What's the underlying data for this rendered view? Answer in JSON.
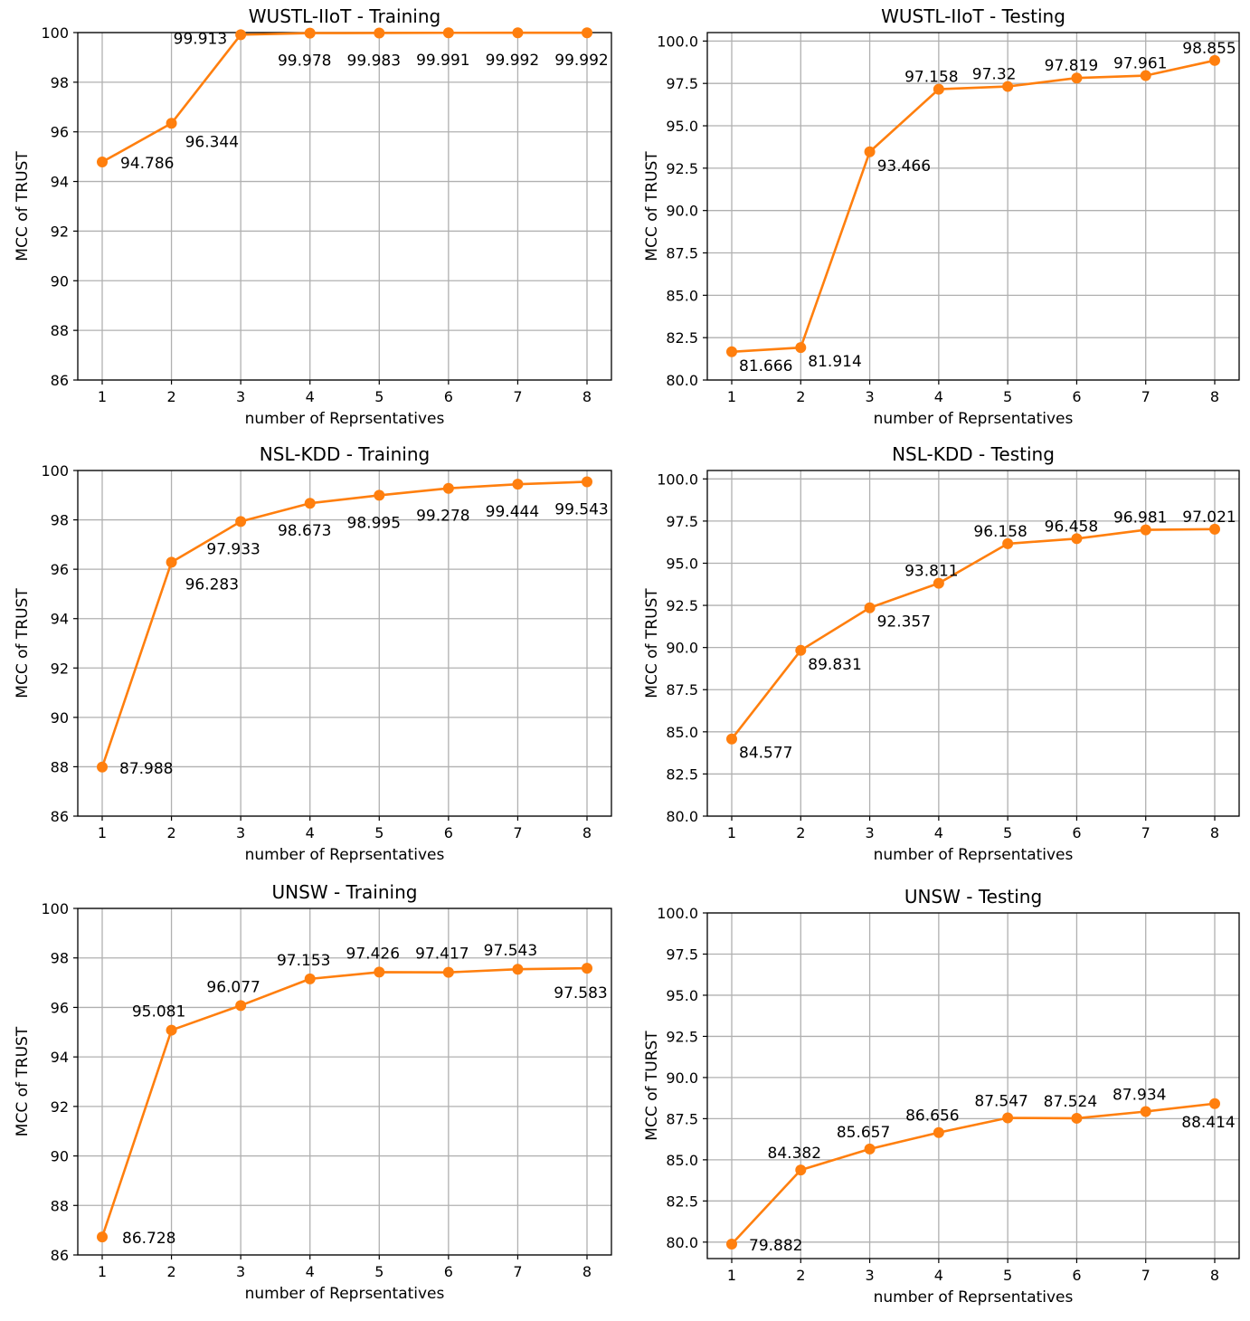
{
  "colors": {
    "series": "#ff7f0e",
    "grid": "#b0b0b0",
    "axis": "#000000"
  },
  "chart_data": [
    {
      "type": "line",
      "title": "WUSTL-IIoT - Training",
      "xlabel": "number of Reprsentatives",
      "ylabel": "MCC of TRUST",
      "x": [
        1,
        2,
        3,
        4,
        5,
        6,
        7,
        8
      ],
      "values": [
        94.786,
        96.344,
        99.913,
        99.978,
        99.983,
        99.991,
        99.992,
        99.992
      ],
      "labels": [
        "94.786",
        "96.344",
        "99.913",
        "99.978",
        "99.983",
        "99.991",
        "99.992",
        "99.992"
      ],
      "ylim": [
        86,
        100
      ],
      "xticks": [
        "1",
        "2",
        "3",
        "4",
        "5",
        "6",
        "7",
        "8"
      ],
      "yticks": [
        "86",
        "88",
        "90",
        "92",
        "94",
        "96",
        "98",
        "100"
      ],
      "grid": true
    },
    {
      "type": "line",
      "title": "WUSTL-IIoT - Testing",
      "xlabel": "number of Reprsentatives",
      "ylabel": "MCC of TRUST",
      "x": [
        1,
        2,
        3,
        4,
        5,
        6,
        7,
        8
      ],
      "values": [
        81.666,
        81.914,
        93.466,
        97.158,
        97.32,
        97.819,
        97.961,
        98.855
      ],
      "labels": [
        "81.666",
        "81.914",
        "93.466",
        "97.158",
        "97.32",
        "97.819",
        "97.961",
        "98.855"
      ],
      "ylim": [
        80,
        100.5
      ],
      "xticks": [
        "1",
        "2",
        "3",
        "4",
        "5",
        "6",
        "7",
        "8"
      ],
      "yticks": [
        "80.0",
        "82.5",
        "85.0",
        "87.5",
        "90.0",
        "92.5",
        "95.0",
        "97.5",
        "100.0"
      ],
      "grid": true
    },
    {
      "type": "line",
      "title": "NSL-KDD - Training",
      "xlabel": "number of Reprsentatives",
      "ylabel": "MCC of TRUST",
      "x": [
        1,
        2,
        3,
        4,
        5,
        6,
        7,
        8
      ],
      "values": [
        87.988,
        96.283,
        97.933,
        98.673,
        98.995,
        99.278,
        99.444,
        99.543
      ],
      "labels": [
        "87.988",
        "96.283",
        "97.933",
        "98.673",
        "98.995",
        "99.278",
        "99.444",
        "99.543"
      ],
      "ylim": [
        86,
        100
      ],
      "xticks": [
        "1",
        "2",
        "3",
        "4",
        "5",
        "6",
        "7",
        "8"
      ],
      "yticks": [
        "86",
        "88",
        "90",
        "92",
        "94",
        "96",
        "98",
        "100"
      ],
      "grid": true
    },
    {
      "type": "line",
      "title": "NSL-KDD - Testing",
      "xlabel": "number of Reprsentatives",
      "ylabel": "MCC of TRUST",
      "x": [
        1,
        2,
        3,
        4,
        5,
        6,
        7,
        8
      ],
      "values": [
        84.577,
        89.831,
        92.357,
        93.811,
        96.158,
        96.458,
        96.981,
        97.021
      ],
      "labels": [
        "84.577",
        "89.831",
        "92.357",
        "93.811",
        "96.158",
        "96.458",
        "96.981",
        "97.021"
      ],
      "ylim": [
        80,
        100.5
      ],
      "xticks": [
        "1",
        "2",
        "3",
        "4",
        "5",
        "6",
        "7",
        "8"
      ],
      "yticks": [
        "80.0",
        "82.5",
        "85.0",
        "87.5",
        "90.0",
        "92.5",
        "95.0",
        "97.5",
        "100.0"
      ],
      "grid": true
    },
    {
      "type": "line",
      "title": "UNSW - Training",
      "xlabel": "number of Reprsentatives",
      "ylabel": "MCC of TRUST",
      "x": [
        1,
        2,
        3,
        4,
        5,
        6,
        7,
        8
      ],
      "values": [
        86.728,
        95.081,
        96.077,
        97.153,
        97.426,
        97.417,
        97.543,
        97.583
      ],
      "labels": [
        "86.728",
        "95.081",
        "96.077",
        "97.153",
        "97.426",
        "97.417",
        "97.543",
        "97.583"
      ],
      "ylim": [
        86,
        100
      ],
      "xticks": [
        "1",
        "2",
        "3",
        "4",
        "5",
        "6",
        "7",
        "8"
      ],
      "yticks": [
        "86",
        "88",
        "90",
        "92",
        "94",
        "96",
        "98",
        "100"
      ],
      "grid": true
    },
    {
      "type": "line",
      "title": "UNSW - Testing",
      "xlabel": "number of Reprsentatives",
      "ylabel": "MCC of TURST",
      "x": [
        1,
        2,
        3,
        4,
        5,
        6,
        7,
        8
      ],
      "values": [
        79.882,
        84.382,
        85.657,
        86.656,
        87.547,
        87.524,
        87.934,
        88.414
      ],
      "labels": [
        "79.882",
        "84.382",
        "85.657",
        "86.656",
        "87.547",
        "87.524",
        "87.934",
        "88.414"
      ],
      "ylim": [
        79,
        100
      ],
      "xticks": [
        "1",
        "2",
        "3",
        "4",
        "5",
        "6",
        "7",
        "8"
      ],
      "yticks": [
        "80.0",
        "82.5",
        "85.0",
        "87.5",
        "90.0",
        "92.5",
        "95.0",
        "97.5",
        "100.0"
      ],
      "grid": true
    }
  ]
}
